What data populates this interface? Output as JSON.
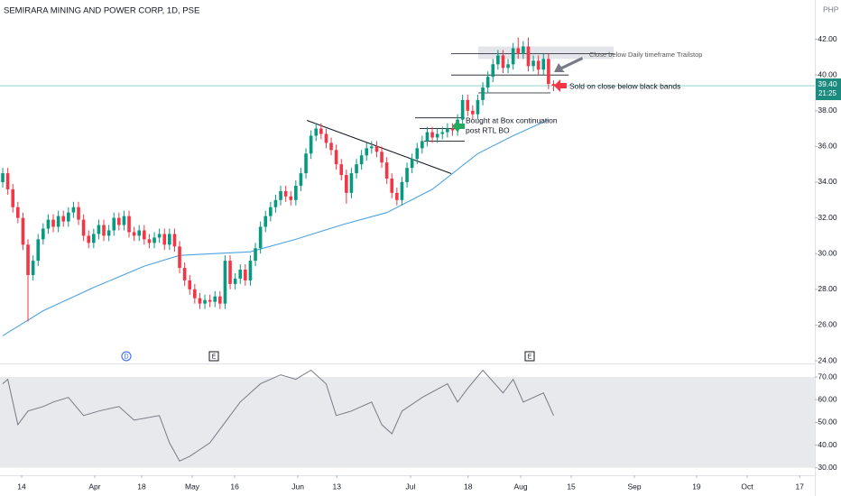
{
  "chart_data": [
    {
      "type": "candlestick",
      "title": "SEMIRARA MINING AND POWER CORP, 1D, PSE",
      "unit": "PHP",
      "up_color": "#089981",
      "down_color": "#f23645",
      "ylim": [
        23.9,
        44.2
      ],
      "yticks": [
        {
          "value": 42,
          "label": "42.00"
        },
        {
          "value": 40,
          "label": "40.00"
        },
        {
          "value": 38,
          "label": "38.00"
        },
        {
          "value": 36,
          "label": "36.00"
        },
        {
          "value": 34,
          "label": "34.00"
        },
        {
          "value": 32,
          "label": "32.00"
        },
        {
          "value": 30,
          "label": "30.00"
        },
        {
          "value": 28,
          "label": "28.00"
        },
        {
          "value": 26,
          "label": "26.00"
        },
        {
          "value": 24,
          "label": "24.00"
        }
      ],
      "xlim": [
        -0.54,
        160.7
      ],
      "xticks": [
        {
          "value": 3.75,
          "label": "14"
        },
        {
          "value": 18.2,
          "label": "Apr"
        },
        {
          "value": 27.5,
          "label": "18"
        },
        {
          "value": 37.5,
          "label": "May"
        },
        {
          "value": 45.9,
          "label": "16"
        },
        {
          "value": 58.4,
          "label": "Jun"
        },
        {
          "value": 66.1,
          "label": "13"
        },
        {
          "value": 80.7,
          "label": "Jul"
        },
        {
          "value": 92.1,
          "label": "18"
        },
        {
          "value": 102.5,
          "label": "Aug"
        },
        {
          "value": 112.5,
          "label": "15"
        },
        {
          "value": 125,
          "label": "Sep"
        },
        {
          "value": 137.3,
          "label": "19"
        },
        {
          "value": 147.3,
          "label": "Oct"
        },
        {
          "value": 157.7,
          "label": "17"
        }
      ],
      "grid": false,
      "candles": {
        "open": [
          34.0,
          34.5,
          33.6,
          32.6,
          32.0,
          30.5,
          28.8,
          29.6,
          30.8,
          31.4,
          31.9,
          31.5,
          32.1,
          31.8,
          32.3,
          32.6,
          31.9,
          31.0,
          30.6,
          31.1,
          31.6,
          31.0,
          31.3,
          32.0,
          31.6,
          32.1,
          31.2,
          31.0,
          31.3,
          30.8,
          30.6,
          30.9,
          31.1,
          30.5,
          31.1,
          30.4,
          29.2,
          28.5,
          28.0,
          27.5,
          27.2,
          27.4,
          27.3,
          27.6,
          27.2,
          29.6,
          28.3,
          28.6,
          29.1,
          28.5,
          29.6,
          30.3,
          31.5,
          32.1,
          32.6,
          33.0,
          33.5,
          33.2,
          33.0,
          33.8,
          34.5,
          35.6,
          36.6,
          37.0,
          36.7,
          36.2,
          35.8,
          35.0,
          34.4,
          33.4,
          34.5,
          35.0,
          35.5,
          35.9,
          36.0,
          35.7,
          35.1,
          34.2,
          33.4,
          33.0,
          34.0,
          34.8,
          35.3,
          35.9,
          36.3,
          36.8,
          36.5,
          36.7,
          36.8,
          37.0,
          36.9,
          37.5,
          38.6,
          38.0,
          37.8,
          38.6,
          39.3,
          39.9,
          40.6,
          41.1,
          40.4,
          40.6,
          41.5,
          41.2,
          41.6,
          40.5,
          40.8,
          40.3,
          40.9,
          39.5
        ],
        "high": [
          34.8,
          34.8,
          33.9,
          32.9,
          32.3,
          30.8,
          29.9,
          31.1,
          31.7,
          32.2,
          32.2,
          32.4,
          32.4,
          32.6,
          32.9,
          32.9,
          32.2,
          31.3,
          31.4,
          31.9,
          31.9,
          31.6,
          32.3,
          32.3,
          32.4,
          32.4,
          31.5,
          31.6,
          31.6,
          31.1,
          31.2,
          31.4,
          31.4,
          31.4,
          31.4,
          30.7,
          29.5,
          28.8,
          28.3,
          27.8,
          27.7,
          27.7,
          27.9,
          27.9,
          29.9,
          29.9,
          28.9,
          29.4,
          29.4,
          29.9,
          30.6,
          31.8,
          32.4,
          32.9,
          33.3,
          33.8,
          33.8,
          33.5,
          34.1,
          34.8,
          35.9,
          36.9,
          37.3,
          37.3,
          37.0,
          36.5,
          36.1,
          35.3,
          34.7,
          34.8,
          35.3,
          35.8,
          36.2,
          36.3,
          36.3,
          36.0,
          35.4,
          34.5,
          33.7,
          34.3,
          35.1,
          35.6,
          36.2,
          36.6,
          37.1,
          37.1,
          37.0,
          37.1,
          37.3,
          37.3,
          37.8,
          38.9,
          38.9,
          38.3,
          38.9,
          39.6,
          40.2,
          40.9,
          41.4,
          41.4,
          40.9,
          41.8,
          42.1,
          41.9,
          42.1,
          41.1,
          41.1,
          41.2,
          41.2,
          39.7
        ],
        "low": [
          33.7,
          33.3,
          32.3,
          31.7,
          30.2,
          26.2,
          28.5,
          29.3,
          30.5,
          31.1,
          31.2,
          31.2,
          31.5,
          31.5,
          32.0,
          31.6,
          30.7,
          30.3,
          30.3,
          30.8,
          30.7,
          30.7,
          31.0,
          31.3,
          31.3,
          30.9,
          30.7,
          30.7,
          30.5,
          30.3,
          30.3,
          30.6,
          30.2,
          30.2,
          30.1,
          28.9,
          28.2,
          27.7,
          27.2,
          26.9,
          26.9,
          27.0,
          27.0,
          26.9,
          26.9,
          28.0,
          28.0,
          28.3,
          28.2,
          28.2,
          29.3,
          30.0,
          31.2,
          31.8,
          32.3,
          32.7,
          32.9,
          32.7,
          32.7,
          33.5,
          34.2,
          35.3,
          36.3,
          36.4,
          35.9,
          35.5,
          34.7,
          34.1,
          32.8,
          33.1,
          34.2,
          34.7,
          35.2,
          35.6,
          35.4,
          34.8,
          33.9,
          33.1,
          32.7,
          32.7,
          33.7,
          34.5,
          35.0,
          35.6,
          36.0,
          36.2,
          36.2,
          36.4,
          36.5,
          36.6,
          36.6,
          37.2,
          37.7,
          37.5,
          37.5,
          38.3,
          39.0,
          39.6,
          40.3,
          40.1,
          40.1,
          40.3,
          40.9,
          40.9,
          40.2,
          40.2,
          40.0,
          40.0,
          39.2,
          39.1
        ],
        "close": [
          34.5,
          33.6,
          32.6,
          32.0,
          30.5,
          28.8,
          29.6,
          30.8,
          31.4,
          31.9,
          31.5,
          32.1,
          31.8,
          32.3,
          32.6,
          31.9,
          31.0,
          30.6,
          31.1,
          31.6,
          31.0,
          31.3,
          32.0,
          31.6,
          32.1,
          31.2,
          31.0,
          31.3,
          30.8,
          30.6,
          30.9,
          31.1,
          30.5,
          31.1,
          30.4,
          29.2,
          28.5,
          28.0,
          27.5,
          27.2,
          27.4,
          27.3,
          27.6,
          27.2,
          29.6,
          28.3,
          28.6,
          29.1,
          28.5,
          29.6,
          30.3,
          31.5,
          32.1,
          32.6,
          33.0,
          33.5,
          33.2,
          33.0,
          33.8,
          34.5,
          35.6,
          36.6,
          37.0,
          36.7,
          36.2,
          35.8,
          35.0,
          34.4,
          33.4,
          34.5,
          35.0,
          35.5,
          35.9,
          36.0,
          35.7,
          35.1,
          34.2,
          33.4,
          33.0,
          34.0,
          34.8,
          35.3,
          35.9,
          36.3,
          36.8,
          36.5,
          36.7,
          36.8,
          37.0,
          36.9,
          37.5,
          38.6,
          38.0,
          37.8,
          38.6,
          39.3,
          39.9,
          40.6,
          41.1,
          40.4,
          40.6,
          41.5,
          41.2,
          41.6,
          40.5,
          40.8,
          40.3,
          40.9,
          39.5,
          39.4
        ]
      },
      "ma": {
        "color": "#4ea3e0",
        "x": [
          0,
          8,
          18,
          28,
          35,
          42,
          49,
          58,
          67,
          76,
          85,
          94,
          101,
          108
        ],
        "values": [
          25.4,
          26.8,
          28.1,
          29.3,
          29.9,
          30.0,
          30.1,
          30.8,
          31.6,
          32.3,
          33.6,
          35.6,
          36.6,
          37.5
        ]
      },
      "price_label": {
        "value": 39.4,
        "label": "39.40"
      },
      "countdown": "21:25",
      "hlines": [
        {
          "x": [
            88.75,
            120.9
          ],
          "y": 41.2
        },
        {
          "x": [
            88.75,
            112
          ],
          "y": 40.0
        },
        {
          "x": [
            94.1,
            108.4
          ],
          "y": 39.0
        },
        {
          "x": [
            81.6,
            91.4
          ],
          "y": 37.6
        },
        {
          "x": [
            82.5,
            91.4
          ],
          "y": 37.0
        },
        {
          "x": [
            83.4,
            91.4
          ],
          "y": 36.3
        }
      ],
      "box": {
        "x": [
          94.1,
          120.9
        ],
        "y": [
          40.9,
          41.6
        ]
      },
      "trendline": {
        "x": [
          60.2,
          88.75
        ],
        "y": [
          37.46,
          34.48
        ]
      },
      "notes": [
        "Close below Daily timeframe Trailstop",
        "Sold on close below black bands",
        "Bought at Box continuation",
        "post RTL BO"
      ],
      "events": [
        "D",
        "E",
        "E"
      ]
    },
    {
      "type": "line",
      "color": "#787b86",
      "band": [
        30,
        70
      ],
      "ylim": [
        27.5,
        75.2
      ],
      "yticks": [
        {
          "value": 70,
          "label": "70.00"
        },
        {
          "value": 60,
          "label": "60.00"
        },
        {
          "value": 50,
          "label": "50.00"
        },
        {
          "value": 40,
          "label": "40.00"
        },
        {
          "value": 30,
          "label": "30.00"
        }
      ],
      "x": [
        0,
        1,
        3,
        5,
        8,
        10,
        13,
        16,
        19,
        23,
        26,
        31,
        33,
        35,
        37,
        41,
        43,
        47,
        51,
        55,
        58,
        61,
        64,
        66,
        69,
        73,
        75,
        77,
        79,
        83,
        88,
        90,
        92,
        95,
        99,
        101,
        103,
        107,
        109
      ],
      "values": [
        67,
        69,
        49,
        55,
        57,
        59,
        61,
        53,
        55,
        57,
        51,
        53,
        41,
        33,
        35,
        41,
        47,
        59,
        67,
        71,
        69,
        73,
        67,
        53,
        55,
        59,
        49,
        45,
        55,
        61,
        67,
        59,
        65,
        73,
        63,
        69,
        59,
        63,
        53
      ]
    }
  ]
}
